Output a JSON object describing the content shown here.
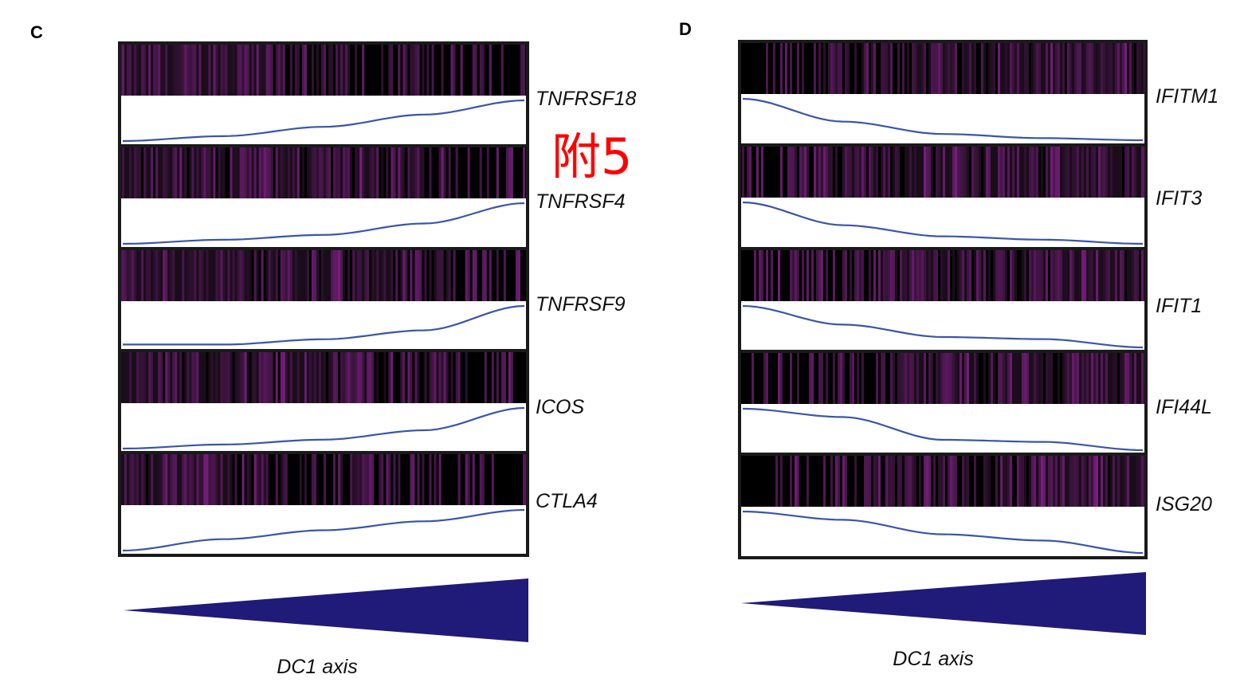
{
  "watermark": "附5",
  "colors": {
    "low": "#1a0d1a",
    "mid_purple": "#7a1f80",
    "high": "#e8e020",
    "trend_line": "#3a55a8",
    "axis_wedge": "#201a78",
    "frame": "#1a1a1a"
  },
  "chart_data": [
    {
      "type": "heatmap",
      "panel": "C",
      "xlabel": "DC1 axis",
      "direction": "increasing",
      "genes": [
        {
          "name": "TNFRSF18",
          "trend": [
            0.0,
            0.12,
            0.35,
            0.65,
            1.0
          ],
          "heat_bias": 0.55
        },
        {
          "name": "TNFRSF4",
          "trend": [
            0.0,
            0.1,
            0.22,
            0.5,
            1.0
          ],
          "heat_bias": 0.5
        },
        {
          "name": "TNFRSF9",
          "trend": [
            0.05,
            0.05,
            0.18,
            0.4,
            1.0
          ],
          "heat_bias": 0.45
        },
        {
          "name": "ICOS",
          "trend": [
            0.0,
            0.1,
            0.22,
            0.45,
            1.0
          ],
          "heat_bias": 0.45
        },
        {
          "name": "CTLA4",
          "trend": [
            0.0,
            0.28,
            0.5,
            0.72,
            1.0
          ],
          "heat_bias": 0.55
        }
      ]
    },
    {
      "type": "heatmap",
      "panel": "D",
      "xlabel": "DC1 axis",
      "direction": "increasing",
      "genes": [
        {
          "name": "IFITM1",
          "trend": [
            1.0,
            0.45,
            0.15,
            0.05,
            0.0
          ],
          "heat_bias": 0.6
        },
        {
          "name": "IFIT3",
          "trend": [
            1.0,
            0.45,
            0.18,
            0.1,
            0.0
          ],
          "heat_bias": 0.4
        },
        {
          "name": "IFIT1",
          "trend": [
            1.0,
            0.55,
            0.25,
            0.2,
            0.0
          ],
          "heat_bias": 0.4
        },
        {
          "name": "IFI44L",
          "trend": [
            1.0,
            0.8,
            0.25,
            0.2,
            0.0
          ],
          "heat_bias": 0.45
        },
        {
          "name": "ISG20",
          "trend": [
            1.0,
            0.8,
            0.45,
            0.3,
            0.0
          ],
          "heat_bias": 0.55
        }
      ]
    }
  ]
}
